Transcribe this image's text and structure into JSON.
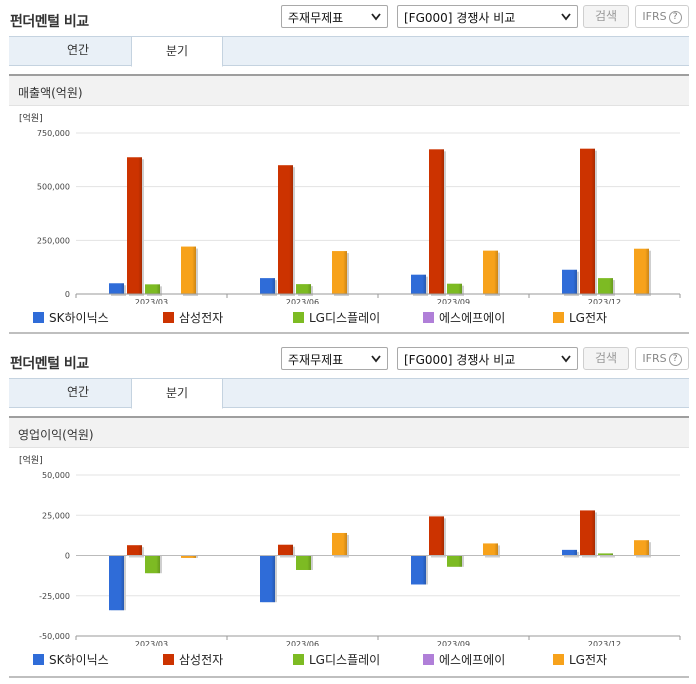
{
  "panels": [
    {
      "title": "펀더멘털 비교",
      "select_type": "주재무제표",
      "select_compare": "[FG000] 경쟁사 비교",
      "search_label": "검색",
      "ifrs_label": "IFRS",
      "help_glyph": "?",
      "tabs": [
        "연간",
        "분기"
      ],
      "active_tab": "분기",
      "section_title": "매출액(억원)"
    },
    {
      "title": "펀더멘털 비교",
      "select_type": "주재무제표",
      "select_compare": "[FG000] 경쟁사 비교",
      "search_label": "검색",
      "ifrs_label": "IFRS",
      "help_glyph": "?",
      "tabs": [
        "연간",
        "분기"
      ],
      "active_tab": "분기",
      "section_title": "영업이익(억원)"
    }
  ],
  "colors": {
    "accent_blue": "#2f6cd8",
    "tab_bg": "#e9f0f7"
  },
  "chart_data": [
    {
      "type": "bar",
      "title": "매출액(억원)",
      "unit_label": "[억원]",
      "categories": [
        "2023/03",
        "2023/06",
        "2023/09",
        "2023/12"
      ],
      "ylim": [
        0,
        750000
      ],
      "yticks": [
        0,
        250000,
        500000,
        750000
      ],
      "ytick_labels": [
        "0",
        "250,000",
        "500,000",
        "750,000"
      ],
      "grid": true,
      "legend": "bottom",
      "series": [
        {
          "name": "SK하이닉스",
          "color": "#2f6cd8",
          "values": [
            50000,
            74000,
            90000,
            113000
          ]
        },
        {
          "name": "삼성전자",
          "color": "#cc3300",
          "values": [
            637000,
            600000,
            674000,
            677000
          ]
        },
        {
          "name": "LG디스플레이",
          "color": "#7dbb23",
          "values": [
            45000,
            46000,
            48000,
            74000
          ]
        },
        {
          "name": "에스에프에이",
          "color": "#b07fd8",
          "values": [
            null,
            null,
            null,
            null
          ]
        },
        {
          "name": "LG전자",
          "color": "#f7a21b",
          "values": [
            221000,
            200000,
            202000,
            211000
          ]
        }
      ]
    },
    {
      "type": "bar",
      "title": "영업이익(억원)",
      "unit_label": "[억원]",
      "categories": [
        "2023/03",
        "2023/06",
        "2023/09",
        "2023/12"
      ],
      "ylim": [
        -50000,
        50000
      ],
      "yticks": [
        -50000,
        -25000,
        0,
        25000,
        50000
      ],
      "ytick_labels": [
        "-50,000",
        "-25,000",
        "0",
        "25,000",
        "50,000"
      ],
      "grid": true,
      "legend": "bottom",
      "series": [
        {
          "name": "SK하이닉스",
          "color": "#2f6cd8",
          "values": [
            -34000,
            -29000,
            -18000,
            3500
          ]
        },
        {
          "name": "삼성전자",
          "color": "#cc3300",
          "values": [
            6400,
            6700,
            24300,
            28000
          ]
        },
        {
          "name": "LG디스플레이",
          "color": "#7dbb23",
          "values": [
            -11000,
            -9000,
            -7000,
            1300
          ]
        },
        {
          "name": "에스에프에이",
          "color": "#b07fd8",
          "values": [
            null,
            null,
            null,
            null
          ]
        },
        {
          "name": "LG전자",
          "color": "#f7a21b",
          "values": [
            -1500,
            14000,
            7500,
            9500
          ]
        }
      ]
    }
  ]
}
